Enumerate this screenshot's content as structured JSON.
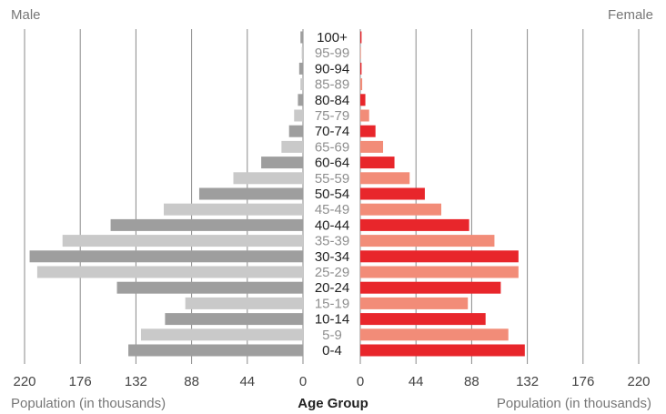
{
  "chart_data": {
    "type": "bar",
    "orientation": "horizontal",
    "layout": "population-pyramid",
    "left_label": "Male",
    "right_label": "Female",
    "center_axis_title": "Age Group",
    "left_axis_title": "Population (in thousands)",
    "right_axis_title": "Population (in thousands)",
    "categories": [
      "100+",
      "95-99",
      "90-94",
      "85-89",
      "80-84",
      "75-79",
      "70-74",
      "65-69",
      "60-64",
      "55-59",
      "50-54",
      "45-49",
      "40-44",
      "35-39",
      "30-34",
      "25-29",
      "20-24",
      "15-19",
      "10-14",
      "5-9",
      "0-4"
    ],
    "series": [
      {
        "name": "Male",
        "values": [
          2,
          1,
          3,
          2,
          4,
          7,
          11,
          17,
          33,
          55,
          82,
          110,
          152,
          190,
          216,
          210,
          147,
          93,
          109,
          128,
          138
        ]
      },
      {
        "name": "Female",
        "values": [
          1,
          0.5,
          1,
          1.5,
          4,
          7,
          12,
          18,
          27,
          39,
          51,
          64,
          86,
          106,
          125,
          125,
          111,
          85,
          99,
          117,
          130
        ]
      }
    ],
    "x_ticks_left": [
      220,
      176,
      132,
      88,
      44,
      0
    ],
    "x_ticks_right": [
      0,
      44,
      88,
      132,
      176,
      220
    ],
    "xlim": [
      0,
      220
    ],
    "colors": {
      "male_dark": "#9e9e9e",
      "male_light": "#c9c9c9",
      "female_dark": "#e8262b",
      "female_light": "#f28c78"
    },
    "grid": true
  }
}
